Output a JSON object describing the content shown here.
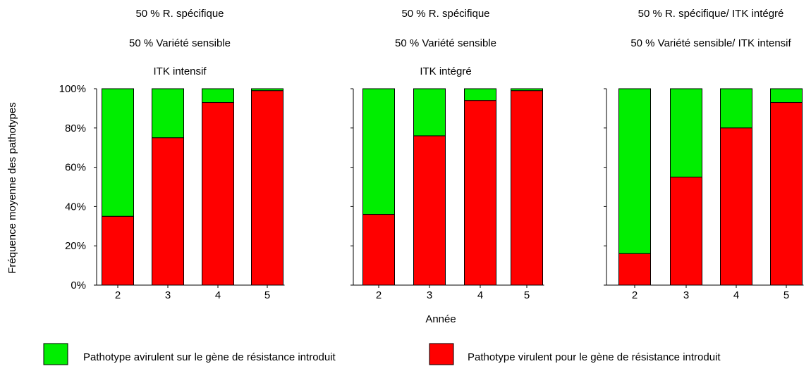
{
  "chart_data": [
    {
      "type": "bar",
      "stacked": true,
      "title_lines": [
        "50 % R. spécifique",
        "50 % Variété sensible",
        "ITK intensif"
      ],
      "categories": [
        "2",
        "3",
        "4",
        "5"
      ],
      "series": [
        {
          "name": "Pathotype virulent pour le gène de résistance introduit",
          "values": [
            35,
            75,
            93,
            99
          ]
        },
        {
          "name": "Pathotype avirulent sur le gène de résistance introduit",
          "values": [
            65,
            25,
            7,
            1
          ]
        }
      ],
      "ylim": [
        0,
        100
      ]
    },
    {
      "type": "bar",
      "stacked": true,
      "title_lines": [
        "50 % R. spécifique",
        "50 % Variété sensible",
        "ITK intégré"
      ],
      "categories": [
        "2",
        "3",
        "4",
        "5"
      ],
      "series": [
        {
          "name": "Pathotype virulent pour le gène de résistance introduit",
          "values": [
            36,
            76,
            94,
            99
          ]
        },
        {
          "name": "Pathotype avirulent sur le gène de résistance introduit",
          "values": [
            64,
            24,
            6,
            1
          ]
        }
      ],
      "ylim": [
        0,
        100
      ]
    },
    {
      "type": "bar",
      "stacked": true,
      "title_lines": [
        "50 % R. spécifique/ ITK intégré",
        "50 % Variété sensible/ ITK intensif"
      ],
      "categories": [
        "2",
        "3",
        "4",
        "5"
      ],
      "series": [
        {
          "name": "Pathotype virulent pour le gène de résistance introduit",
          "values": [
            16,
            55,
            80,
            93
          ]
        },
        {
          "name": "Pathotype avirulent sur le gène de résistance introduit",
          "values": [
            84,
            45,
            20,
            7
          ]
        }
      ],
      "ylim": [
        0,
        100
      ]
    }
  ],
  "ylabel": "Fréquence moyenne des pathotypes",
  "xlabel": "Année",
  "yticks": [
    "0%",
    "20%",
    "40%",
    "60%",
    "80%",
    "100%"
  ],
  "colors": {
    "virulent": "#ff0000",
    "avirulent": "#00ee00"
  },
  "legend": {
    "avirulent_label": "Pathotype avirulent sur le gène de résistance introduit",
    "virulent_label": "Pathotype virulent pour le gène de résistance introduit"
  }
}
